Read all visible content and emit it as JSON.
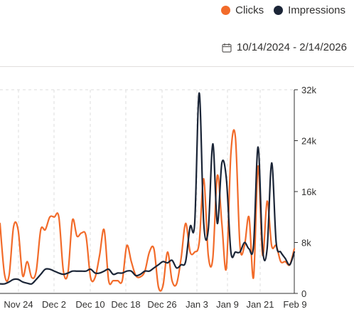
{
  "legend": {
    "clicks_label": "Clicks",
    "impressions_label": "Impressions"
  },
  "date_range": {
    "label": "10/14/2024 - 2/14/2026",
    "icon": "calendar-icon"
  },
  "colors": {
    "clicks": "#f26b2a",
    "impressions": "#1b2537",
    "grid": "#dcdcdc",
    "axis": "#323130"
  },
  "chart_data": {
    "type": "line",
    "x_tick_labels": [
      "Nov 24",
      "Dec 2",
      "Dec 10",
      "Dec 18",
      "Dec 26",
      "Jan 3",
      "Jan 9",
      "Jan 21",
      "Feb 9"
    ],
    "y_tick_labels": [
      "0",
      "8k",
      "16k",
      "24k",
      "32k"
    ],
    "ylim": [
      0,
      32000
    ],
    "grid": true,
    "legend_position": "top-right",
    "series": [
      {
        "name": "Clicks",
        "values": [
          11000,
          3000,
          2800,
          10500,
          10000,
          2800,
          5000,
          2500,
          3500,
          10000,
          10000,
          12000,
          12000,
          12000,
          3500,
          3200,
          11500,
          9000,
          9500,
          9000,
          2500,
          2500,
          6000,
          10000,
          2000,
          2000,
          2000,
          2000,
          7500,
          5000,
          2800,
          2600,
          3500,
          6500,
          7000,
          1000,
          1200,
          6500,
          2000,
          1500,
          5500,
          11000,
          6500,
          6500,
          8000,
          18000,
          6000,
          5500,
          18500,
          11000,
          4000,
          22000,
          24500,
          7500,
          7500,
          12000,
          2500,
          20000,
          6000,
          14500,
          7500,
          7500,
          5000,
          5000,
          4500,
          7000
        ]
      },
      {
        "name": "Impressions",
        "values": [
          1500,
          1500,
          1800,
          2200,
          2200,
          1800,
          1600,
          1500,
          2200,
          3000,
          3800,
          3800,
          3500,
          3200,
          3000,
          3200,
          3500,
          3500,
          3500,
          3500,
          3800,
          3200,
          3200,
          3500,
          3800,
          3000,
          3200,
          3200,
          3500,
          3500,
          2800,
          3000,
          3500,
          3500,
          4000,
          4500,
          5000,
          4800,
          5200,
          4000,
          4500,
          5000,
          10500,
          11000,
          31500,
          11000,
          10000,
          23500,
          11000,
          20500,
          18000,
          6500,
          6500,
          6500,
          8000,
          7000,
          7500,
          23000,
          7000,
          7000,
          20500,
          8000,
          6500,
          5500,
          4500,
          6500
        ]
      }
    ]
  }
}
